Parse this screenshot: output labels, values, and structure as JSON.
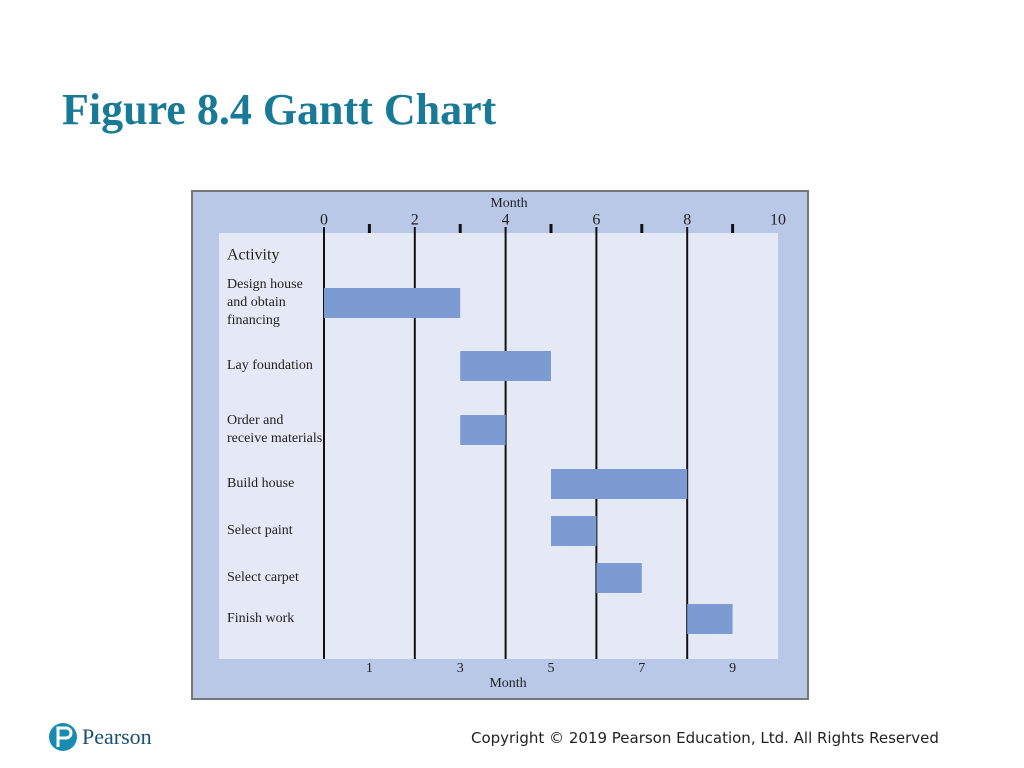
{
  "chart_data": {
    "type": "gantt",
    "title": "Figure 8.4 Gantt Chart",
    "xlabel": "Month",
    "x2label": "Month",
    "category_header": "Activity",
    "xlim": [
      0,
      10
    ],
    "xticks": [
      0,
      2,
      4,
      6,
      8,
      10
    ],
    "x2ticks": [
      1,
      3,
      5,
      7,
      9
    ],
    "color": "#7b9bd2",
    "tasks": [
      {
        "name": "Design house and obtain financing",
        "start": 0,
        "end": 3
      },
      {
        "name": "Lay foundation",
        "start": 3,
        "end": 5
      },
      {
        "name": "Order and receive materials",
        "start": 3,
        "end": 4
      },
      {
        "name": "Build house",
        "start": 5,
        "end": 8
      },
      {
        "name": "Select paint",
        "start": 5,
        "end": 6
      },
      {
        "name": "Select carpet",
        "start": 6,
        "end": 7
      },
      {
        "name": "Finish work",
        "start": 8,
        "end": 9
      }
    ]
  },
  "footer": {
    "brand": "Pearson",
    "copyright": "Copyright © 2019 Pearson Education, Ltd. All Rights Reserved"
  }
}
